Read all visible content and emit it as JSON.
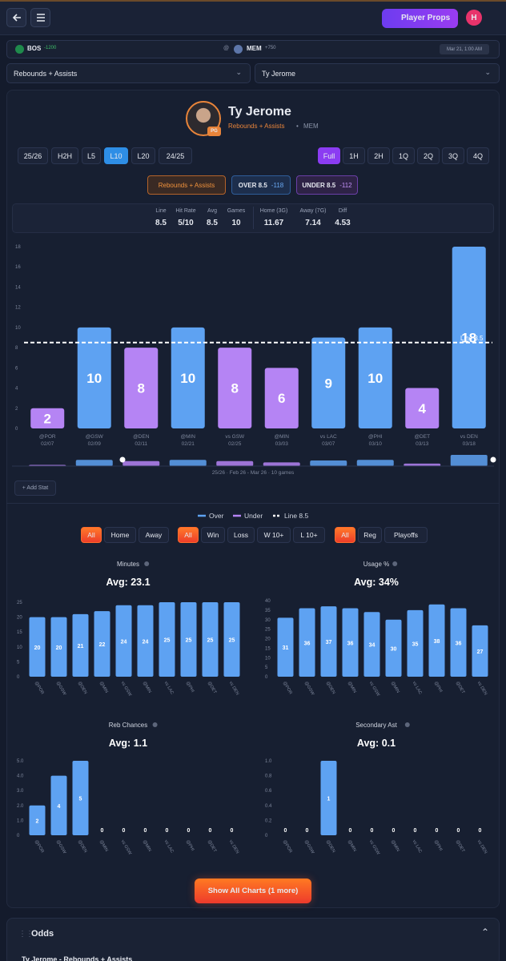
{
  "header": {
    "button": "Player Props",
    "avatar": "H"
  },
  "game": {
    "away": "BOS",
    "away_odds": "-1200",
    "at": "@",
    "home": "MEM",
    "home_odds": "+750",
    "time": "Mar 21, 1:00 AM"
  },
  "selectors": {
    "market": "Rebounds + Assists",
    "player": "Ty Jerome"
  },
  "player": {
    "name": "Ty Jerome",
    "position": "PG",
    "market": "Rebounds + Assists",
    "separator": "•",
    "team": "MEM"
  },
  "ranges": {
    "items": [
      "25/26",
      "H2H",
      "L5",
      "L10",
      "L20",
      "24/25"
    ],
    "active": 3
  },
  "periods": {
    "items": [
      "Full",
      "1H",
      "2H",
      "1Q",
      "2Q",
      "3Q",
      "4Q"
    ],
    "active": 0
  },
  "props": {
    "market": "Rebounds + Assists",
    "over": {
      "label": "OVER 8.5",
      "odds": "-118"
    },
    "under": {
      "label": "UNDER 8.5",
      "odds": "-112"
    }
  },
  "stats": [
    {
      "label": "Line",
      "value": 8.5
    },
    {
      "label": "Hit Rate",
      "value": "5/10"
    },
    {
      "label": "Avg",
      "value": 8.5
    },
    {
      "label": "Games",
      "value": 10
    },
    {
      "label": "Home (3G)",
      "value": 11.67
    },
    {
      "label": "Away (7G)",
      "value": 7.14
    },
    {
      "label": "Diff",
      "value": 4.53
    }
  ],
  "chart_data": [
    {
      "type": "bar",
      "categories": [
        "@POR",
        "@GSW",
        "@DEN",
        "@MIN",
        "vs GSW",
        "@MIN",
        "vs LAC",
        "@PHI",
        "@DET",
        "vs DEN"
      ],
      "dates": [
        "02/07",
        "02/09",
        "02/11",
        "02/21",
        "02/25",
        "03/03",
        "03/07",
        "03/10",
        "03/13",
        "03/18"
      ],
      "values": [
        2,
        10,
        8,
        10,
        8,
        6,
        9,
        10,
        4,
        18
      ],
      "line": 8.5,
      "line_label": "Line 8.5",
      "colors": {
        "over": "#5ea2f2",
        "under": "#b584f4"
      },
      "ylim": [
        0,
        18
      ],
      "yticks": [
        0,
        2,
        4,
        6,
        8,
        10,
        12,
        14,
        16,
        18
      ],
      "legend": [
        "Over",
        "Under",
        "Line 8.5"
      ]
    },
    {
      "type": "bar",
      "title": "Minutes",
      "subtitle": "Avg: 23.1",
      "categories": [
        "@POR",
        "@GSW",
        "@DEN",
        "@MIN",
        "vs GSW",
        "@MIN",
        "vs LAC",
        "@PHI",
        "@DET",
        "vs DEN"
      ],
      "values": [
        20,
        20,
        21,
        22,
        24,
        24,
        25,
        25,
        25,
        25
      ],
      "color": "#5ea2f2",
      "ylim": [
        0,
        25
      ],
      "yticks": [
        0,
        5,
        10,
        15,
        20,
        25
      ]
    },
    {
      "type": "bar",
      "title": "Usage %",
      "subtitle": "Avg: 34%",
      "categories": [
        "@POR",
        "@GSW",
        "@DEN",
        "@MIN",
        "vs GSW",
        "@MIN",
        "vs LAC",
        "@PHI",
        "@DET",
        "vs DEN"
      ],
      "values": [
        31,
        36,
        37,
        36,
        34,
        30,
        35,
        38,
        36,
        27
      ],
      "color": "#5ea2f2",
      "ylim": [
        0,
        40
      ],
      "yticks": [
        0,
        5,
        10,
        15,
        20,
        25,
        30,
        35,
        40
      ]
    },
    {
      "type": "bar",
      "title": "Reb Chances",
      "subtitle": "Avg: 1.1",
      "categories": [
        "@POR",
        "@GSW",
        "@DEN",
        "@MIN",
        "vs GSW",
        "@MIN",
        "vs LAC",
        "@PHI",
        "@DET",
        "vs DEN"
      ],
      "values": [
        2,
        4,
        5,
        0,
        0,
        0,
        0,
        0,
        0,
        0
      ],
      "color": "#5ea2f2",
      "ylim": [
        0,
        5
      ],
      "yticks": [
        0,
        {
          "value": 1,
          "label": "1.0"
        },
        {
          "value": 2,
          "label": "2.0"
        },
        {
          "value": 3,
          "label": "3.0"
        },
        {
          "value": 4,
          "label": "4.0"
        },
        {
          "value": 5,
          "label": "5.0"
        }
      ]
    },
    {
      "type": "bar",
      "title": "Secondary Ast",
      "subtitle": "Avg: 0.1",
      "categories": [
        "@POR",
        "@GSW",
        "@DEN",
        "@MIN",
        "vs GSW",
        "@MIN",
        "vs LAC",
        "@PHI",
        "@DET",
        "vs DEN"
      ],
      "values": [
        0,
        0,
        1,
        0,
        0,
        0,
        0,
        0,
        0,
        0
      ],
      "color": "#5ea2f2",
      "ylim": [
        0,
        1
      ],
      "yticks": [
        0,
        0.2,
        0.4,
        0.6,
        0.8,
        {
          "value": 1,
          "label": "1.0"
        }
      ]
    }
  ],
  "slider_caption": "25/26 · Feb 26 - Mar 26 · 10 games",
  "add_stat": "+ Add Stat",
  "filters": {
    "venue": [
      "All",
      "Home",
      "Away"
    ],
    "result": [
      "All",
      "Win",
      "Loss",
      "W 10+",
      "L 10+"
    ],
    "season": [
      "All",
      "Reg",
      "Playoffs"
    ]
  },
  "show_all": "Show All Charts (1 more)",
  "odds": {
    "title": "Odds",
    "subtitle": "Ty Jerome - Rebounds + Assists"
  }
}
